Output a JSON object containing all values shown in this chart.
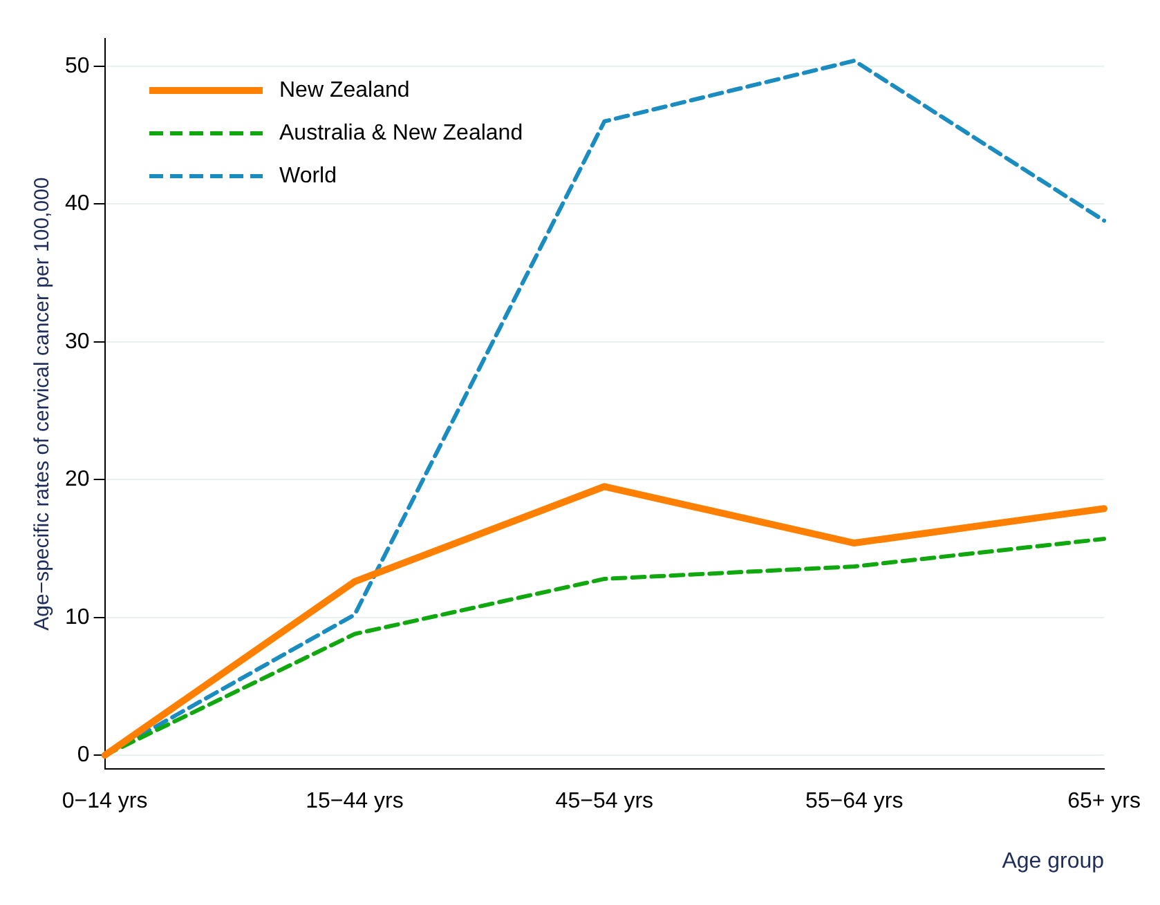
{
  "chart_data": {
    "type": "line",
    "xlabel": "Age group",
    "ylabel": "Age−specific rates of cervical cancer per 100,000",
    "categories": [
      "0−14 yrs",
      "15−44 yrs",
      "45−54 yrs",
      "55−64 yrs",
      "65+ yrs"
    ],
    "series": [
      {
        "name": "New Zealand",
        "color": "#ff8000",
        "line_style": "solid",
        "values": [
          0,
          12.6,
          19.5,
          15.4,
          17.9
        ]
      },
      {
        "name": "Australia & New Zealand",
        "color": "#11a80f",
        "line_style": "dashed",
        "values": [
          0,
          8.8,
          12.8,
          13.7,
          15.7
        ]
      },
      {
        "name": "World",
        "color": "#1a8cbf",
        "line_style": "dashed",
        "values": [
          0,
          10.2,
          46.0,
          50.4,
          38.8
        ]
      }
    ],
    "ylim": [
      -1,
      52
    ],
    "yticks": [
      0,
      10,
      20,
      30,
      40,
      50
    ],
    "grid": "y",
    "legend": "top left",
    "marker": "none"
  }
}
